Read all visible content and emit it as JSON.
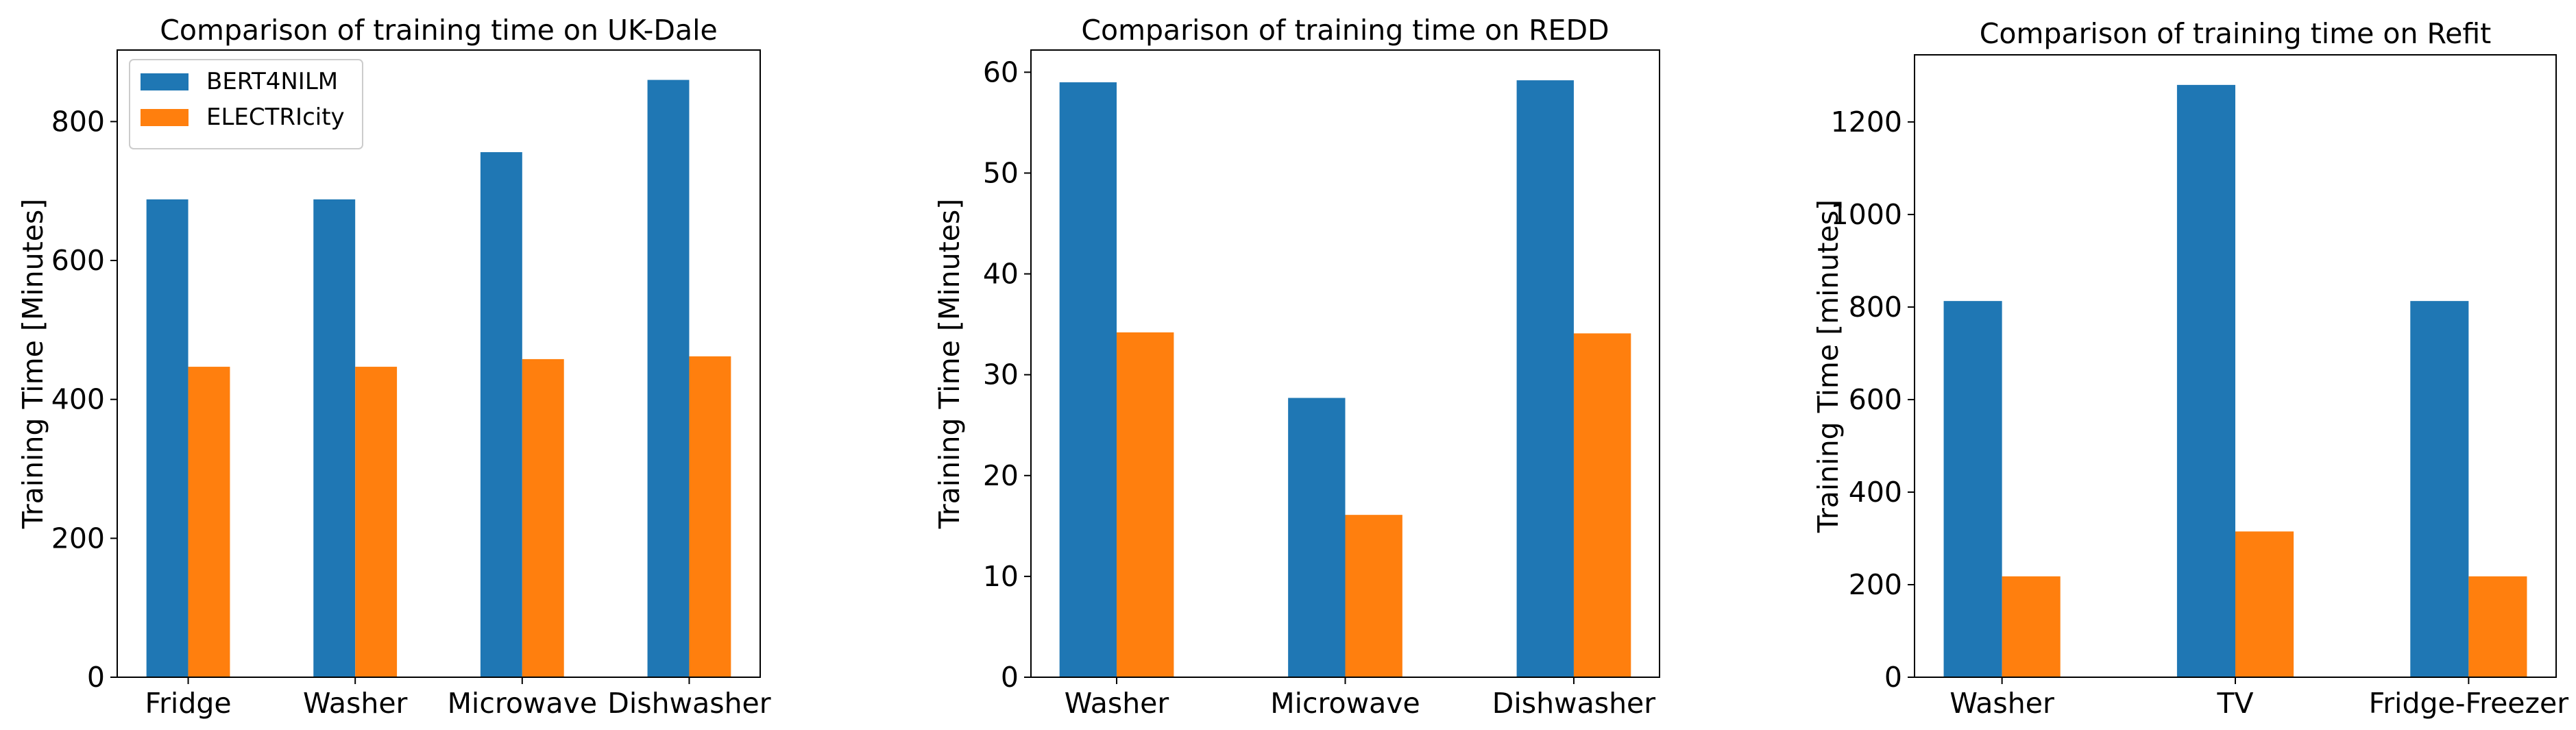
{
  "colors": {
    "series_1": "#1f77b4",
    "series_2": "#ff7f0e",
    "axis": "#000000",
    "legend_border": "#cccccc"
  },
  "chart_data": [
    {
      "type": "bar",
      "title": "Comparison of training time on UK-Dale",
      "xlabel": "",
      "ylabel": "Training Time [Minutes]",
      "categories": [
        "Fridge",
        "Washer",
        "Microwave",
        "Dishwasher"
      ],
      "series": [
        {
          "name": "BERT4NILM",
          "values": [
            688,
            688,
            756,
            860
          ]
        },
        {
          "name": "ELECTRIcity",
          "values": [
            447,
            447,
            458,
            462
          ]
        }
      ],
      "ylim": [
        0,
        903
      ],
      "yticks": [
        0,
        200,
        400,
        600,
        800
      ],
      "legend": "top-left",
      "grid": false
    },
    {
      "type": "bar",
      "title": "Comparison of training time on REDD",
      "xlabel": "",
      "ylabel": "Training Time [Minutes]",
      "categories": [
        "Washer",
        "Microwave",
        "Dishwasher"
      ],
      "series": [
        {
          "name": "BERT4NILM",
          "values": [
            59.0,
            27.7,
            59.2
          ]
        },
        {
          "name": "ELECTRIcity",
          "values": [
            34.2,
            16.1,
            34.1
          ]
        }
      ],
      "ylim": [
        0,
        62.2
      ],
      "yticks": [
        0,
        10,
        20,
        30,
        40,
        50,
        60
      ],
      "legend": "none",
      "grid": false
    },
    {
      "type": "bar",
      "title": "Comparison of training time on Refit",
      "xlabel": "",
      "ylabel": "Training Time [minutes]",
      "categories": [
        "Washer",
        "TV",
        "Fridge-Freezer"
      ],
      "series": [
        {
          "name": "BERT4NILM",
          "values": [
            813,
            1280,
            813
          ]
        },
        {
          "name": "ELECTRIcity",
          "values": [
            218,
            315,
            218
          ]
        }
      ],
      "ylim": [
        0,
        1345
      ],
      "yticks": [
        0,
        200,
        400,
        600,
        800,
        1000,
        1200
      ],
      "legend": "none",
      "grid": false
    }
  ]
}
